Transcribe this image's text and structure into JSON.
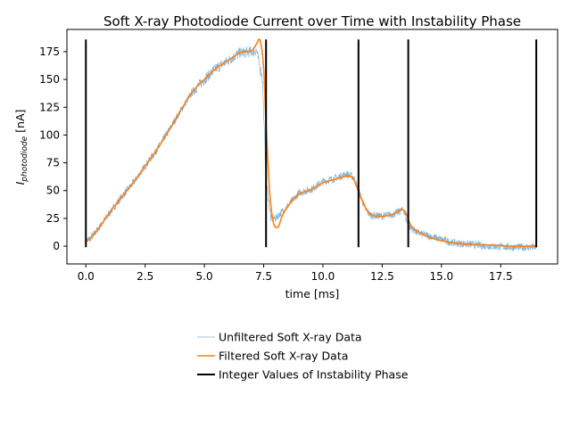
{
  "chart_data": {
    "type": "line",
    "title": "Soft X-ray Photodiode Current over Time with Instability Phase",
    "xlabel": "time [ms]",
    "ylabel_main": "I",
    "ylabel_sub": "photodiode",
    "ylabel_unit": " [nA]",
    "xlim": [
      -0.8,
      19.9
    ],
    "ylim": [
      -16,
      195
    ],
    "xticks": [
      0.0,
      2.5,
      5.0,
      7.5,
      10.0,
      12.5,
      15.0,
      17.5
    ],
    "xtick_labels": [
      "0.0",
      "2.5",
      "5.0",
      "7.5",
      "10.0",
      "12.5",
      "15.0",
      "17.5"
    ],
    "yticks": [
      0,
      25,
      50,
      75,
      100,
      125,
      150,
      175
    ],
    "ytick_labels": [
      "0",
      "25",
      "50",
      "75",
      "100",
      "125",
      "150",
      "175"
    ],
    "grid": false,
    "legend_position": "below",
    "series": [
      {
        "name": "Unfiltered Soft X-ray Data",
        "color": "#1f77b4",
        "style": "noisy-thin",
        "x": [
          0.0,
          0.2,
          0.5,
          1.0,
          1.5,
          2.0,
          2.5,
          3.0,
          3.5,
          4.0,
          4.5,
          5.0,
          5.5,
          6.0,
          6.5,
          7.0,
          7.2,
          7.45,
          7.6,
          7.8,
          8.0,
          8.5,
          9.0,
          9.5,
          10.0,
          10.5,
          11.0,
          11.3,
          11.5,
          11.8,
          12.0,
          12.5,
          13.0,
          13.4,
          13.6,
          14.0,
          14.5,
          15.0,
          15.5,
          16.0,
          17.0,
          18.0,
          19.0
        ],
        "y": [
          5,
          7,
          15,
          30,
          44,
          57,
          72,
          87,
          104,
          122,
          139,
          150,
          160,
          167,
          174,
          175,
          176,
          150,
          60,
          25,
          25,
          36,
          48,
          51,
          58,
          61,
          65,
          62,
          50,
          33,
          28,
          27,
          29,
          33,
          18,
          12,
          9,
          6,
          3,
          2,
          0,
          -1,
          -1
        ]
      },
      {
        "name": "Filtered Soft X-ray Data",
        "color": "#ff7f0e",
        "style": "smooth",
        "x": [
          0.0,
          0.2,
          0.5,
          1.0,
          1.5,
          2.0,
          2.5,
          3.0,
          3.5,
          4.0,
          4.5,
          5.0,
          5.5,
          6.0,
          6.5,
          7.0,
          7.2,
          7.35,
          7.5,
          7.6,
          7.75,
          7.9,
          8.1,
          8.3,
          8.6,
          9.0,
          9.5,
          10.0,
          10.5,
          11.0,
          11.3,
          11.6,
          11.9,
          12.2,
          12.6,
          13.0,
          13.3,
          13.5,
          13.7,
          14.0,
          14.5,
          15.0,
          15.5,
          16.0,
          17.0,
          18.0,
          19.0
        ],
        "y": [
          4,
          7,
          15,
          30,
          44,
          57,
          72,
          87,
          104,
          122,
          139,
          150,
          160,
          167,
          174,
          176,
          182,
          185,
          160,
          110,
          50,
          22,
          17,
          28,
          38,
          47,
          51,
          57,
          60,
          63,
          60,
          44,
          31,
          27,
          27,
          29,
          33,
          30,
          19,
          13,
          8,
          5,
          3,
          2,
          1,
          0,
          0
        ]
      },
      {
        "name": "Integer Values of Instability Phase",
        "color": "#000000",
        "style": "vertical-lines",
        "x": [
          0.0,
          7.6,
          11.5,
          13.6,
          19.0
        ],
        "y_range": [
          -1,
          186
        ]
      }
    ]
  }
}
